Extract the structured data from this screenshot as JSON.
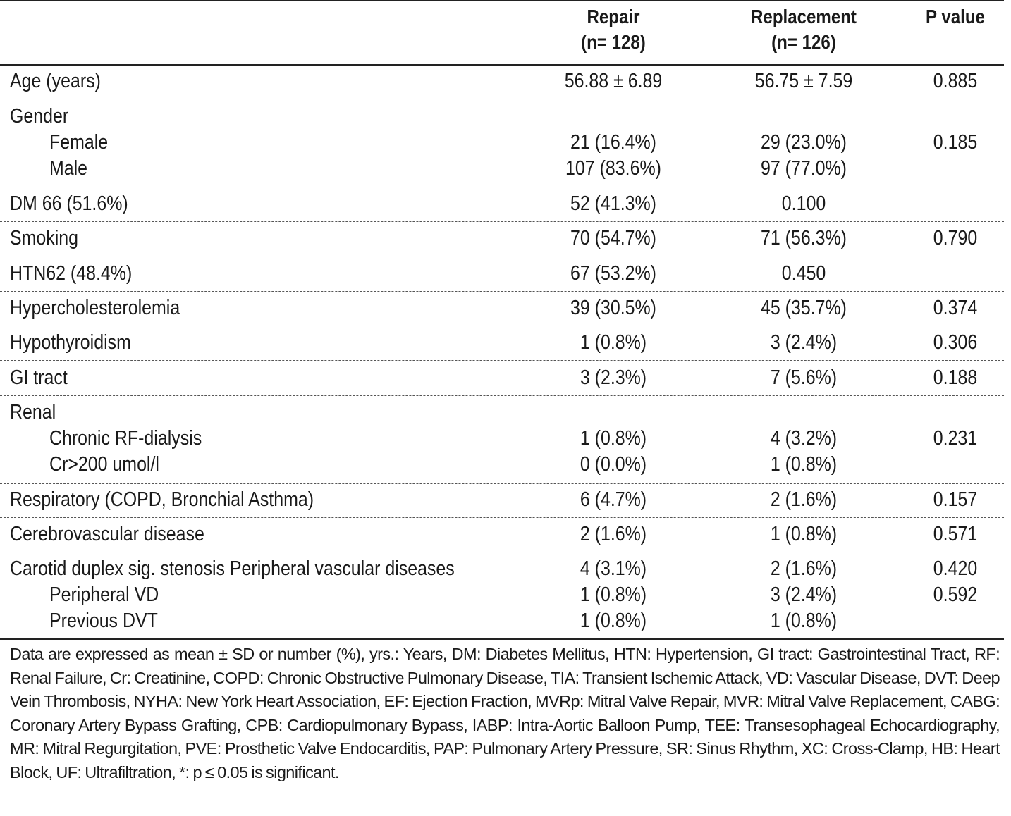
{
  "header": {
    "col1_line1": "Repair",
    "col1_line2": "(n= 128)",
    "col2_line1": "Replacement",
    "col2_line2": "(n= 126)",
    "col3_line1": "P value"
  },
  "rows": {
    "age": {
      "label": "Age (years)",
      "repair": "56.88 ± 6.89",
      "replacement": "56.75 ± 7.59",
      "p": "0.885"
    },
    "gender": {
      "label": "Gender",
      "female": {
        "label": "Female",
        "repair": "21 (16.4%)",
        "replacement": "29 (23.0%)",
        "p": "0.185"
      },
      "male": {
        "label": "Male",
        "repair": "107 (83.6%)",
        "replacement": "97 (77.0%)"
      }
    },
    "dm": {
      "label": "DM 66 (51.6%)",
      "repair": "52 (41.3%)",
      "replacement": "0.100"
    },
    "smoking": {
      "label": "Smoking",
      "repair": "70 (54.7%)",
      "replacement": "71 (56.3%)",
      "p": "0.790"
    },
    "htn": {
      "label": "HTN62 (48.4%)",
      "repair": "67 (53.2%)",
      "replacement": "0.450"
    },
    "hyperchol": {
      "label": "Hypercholesterolemia",
      "repair": "39 (30.5%)",
      "replacement": "45 (35.7%)",
      "p": "0.374"
    },
    "hypothyroid": {
      "label": "Hypothyroidism",
      "repair": "1 (0.8%)",
      "replacement": "3 (2.4%)",
      "p": "0.306"
    },
    "gi": {
      "label": "GI tract",
      "repair": "3 (2.3%)",
      "replacement": "7 (5.6%)",
      "p": "0.188"
    },
    "renal": {
      "label": "Renal",
      "dialysis": {
        "label": "Chronic RF-dialysis",
        "repair": "1 (0.8%)",
        "replacement": "4 (3.2%)",
        "p": "0.231"
      },
      "cr": {
        "label": "Cr>200 umol/l",
        "repair": "0 (0.0%)",
        "replacement": "1 (0.8%)"
      }
    },
    "resp": {
      "label": "Respiratory (COPD, Bronchial Asthma)",
      "repair": "6 (4.7%)",
      "replacement": "2 (1.6%)",
      "p": "0.157"
    },
    "cerebro": {
      "label": "Cerebrovascular disease",
      "repair": "2 (1.6%)",
      "replacement": "1 (0.8%)",
      "p": "0.571"
    },
    "carotid": {
      "label": "Carotid duplex sig. stenosis Peripheral vascular diseases",
      "repair": "4 (3.1%)",
      "replacement": "2 (1.6%)",
      "p": "0.420",
      "pvd": {
        "label": "Peripheral VD",
        "repair": "1 (0.8%)",
        "replacement": "3 (2.4%)",
        "p": "0.592"
      },
      "dvt": {
        "label": "Previous DVT",
        "repair": "1 (0.8%)",
        "replacement": "1 (0.8%)"
      }
    }
  },
  "footnote": "Data are expressed as mean ± SD or number (%), yrs.: Years, DM: Diabetes Mellitus, HTN: Hypertension, GI tract: Gastrointestinal Tract, RF: Renal Failure, Cr: Creatinine, COPD: Chronic Obstructive Pulmonary Disease, TIA: Transient Ischemic Attack, VD: Vascular Disease, DVT: Deep Vein Thrombosis, NYHA: New York Heart Association, EF: Ejection Fraction, MVRp: Mitral Valve Repair, MVR: Mitral Valve Replacement, CABG: Coronary Artery Bypass Grafting, CPB: Cardiopulmonary Bypass, IABP: Intra-Aortic Balloon Pump, TEE: Transesophageal Echocardiography, MR: Mitral Regurgitation, PVE: Prosthetic Valve Endocarditis, PAP: Pulmonary Artery Pressure, SR: Sinus Rhythm, XC: Cross-Clamp, HB: Heart Block, UF: Ultrafiltration, *: p ≤ 0.05 is significant."
}
